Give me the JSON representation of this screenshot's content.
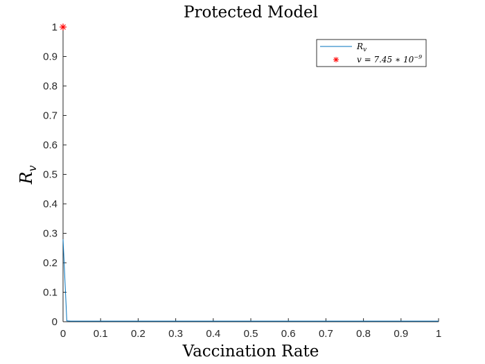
{
  "chart_data": {
    "type": "line",
    "title": "Protected Model",
    "xlabel": "Vaccination Rate",
    "ylabel": "R_v",
    "xlim": [
      0,
      1
    ],
    "ylim": [
      0,
      1
    ],
    "x_ticks": [
      "0",
      "0.1",
      "0.2",
      "0.3",
      "0.4",
      "0.5",
      "0.6",
      "0.7",
      "0.8",
      "0.9",
      "1"
    ],
    "y_ticks": [
      "0",
      "0.1",
      "0.2",
      "0.3",
      "0.4",
      "0.5",
      "0.6",
      "0.7",
      "0.8",
      "0.9",
      "1"
    ],
    "grid": false,
    "legend_position": "top-right",
    "series": [
      {
        "name": "R_v",
        "kind": "line",
        "color": "#0072BD",
        "x": [
          0,
          0.01,
          0.02,
          0.05,
          0.1,
          0.2,
          0.3,
          0.4,
          0.5,
          0.6,
          0.7,
          0.8,
          0.9,
          1.0
        ],
        "y": [
          0.28,
          0.003,
          0.002,
          0.002,
          0.002,
          0.002,
          0.002,
          0.002,
          0.002,
          0.002,
          0.002,
          0.002,
          0.002,
          0.002
        ]
      },
      {
        "name": "v = 7.45 * 10^-9",
        "kind": "marker",
        "color": "#FF0000",
        "x": [
          7.45e-09
        ],
        "y": [
          1
        ]
      }
    ]
  }
}
